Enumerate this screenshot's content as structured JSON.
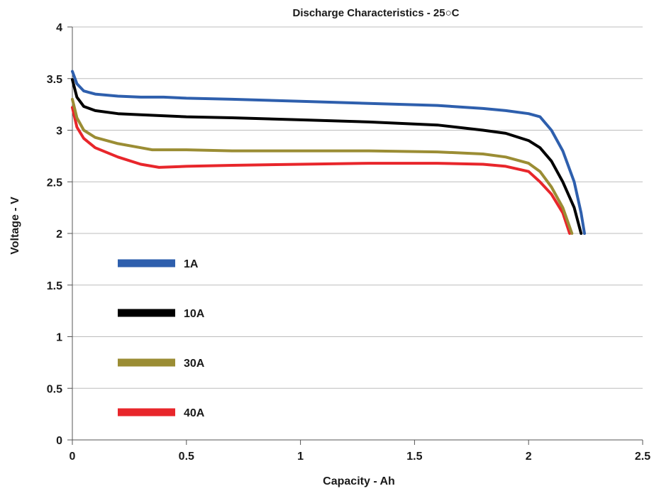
{
  "chart_data": {
    "type": "line",
    "title": "Discharge Characteristics - 25○C",
    "xlabel": "Capacity - Ah",
    "ylabel": "Voltage - V",
    "xlim": [
      0,
      2.5
    ],
    "ylim": [
      0,
      4
    ],
    "x_ticks": [
      "0",
      "0.5",
      "1",
      "1.5",
      "2",
      "2.5"
    ],
    "y_ticks": [
      "0",
      "0.5",
      "1",
      "1.5",
      "2",
      "2.5",
      "3",
      "3.5",
      "4"
    ],
    "grid": "horizontal",
    "legend_position": "left",
    "series": [
      {
        "name": "1A",
        "color": "#2e5fad",
        "points": [
          [
            0.0,
            3.57
          ],
          [
            0.02,
            3.45
          ],
          [
            0.05,
            3.38
          ],
          [
            0.1,
            3.35
          ],
          [
            0.2,
            3.33
          ],
          [
            0.3,
            3.32
          ],
          [
            0.4,
            3.32
          ],
          [
            0.5,
            3.31
          ],
          [
            0.7,
            3.3
          ],
          [
            1.0,
            3.28
          ],
          [
            1.3,
            3.26
          ],
          [
            1.6,
            3.24
          ],
          [
            1.8,
            3.21
          ],
          [
            1.9,
            3.19
          ],
          [
            2.0,
            3.16
          ],
          [
            2.05,
            3.13
          ],
          [
            2.1,
            3.0
          ],
          [
            2.15,
            2.8
          ],
          [
            2.2,
            2.5
          ],
          [
            2.23,
            2.2
          ],
          [
            2.245,
            2.0
          ]
        ]
      },
      {
        "name": "10A",
        "color": "#000000",
        "points": [
          [
            0.0,
            3.49
          ],
          [
            0.02,
            3.32
          ],
          [
            0.05,
            3.23
          ],
          [
            0.1,
            3.19
          ],
          [
            0.2,
            3.16
          ],
          [
            0.3,
            3.15
          ],
          [
            0.5,
            3.13
          ],
          [
            0.7,
            3.12
          ],
          [
            1.0,
            3.1
          ],
          [
            1.3,
            3.08
          ],
          [
            1.6,
            3.05
          ],
          [
            1.8,
            3.0
          ],
          [
            1.9,
            2.97
          ],
          [
            2.0,
            2.9
          ],
          [
            2.05,
            2.83
          ],
          [
            2.1,
            2.7
          ],
          [
            2.15,
            2.5
          ],
          [
            2.2,
            2.25
          ],
          [
            2.23,
            2.0
          ]
        ]
      },
      {
        "name": "30A",
        "color": "#9b8d34",
        "points": [
          [
            0.0,
            3.3
          ],
          [
            0.02,
            3.12
          ],
          [
            0.05,
            3.0
          ],
          [
            0.1,
            2.93
          ],
          [
            0.2,
            2.87
          ],
          [
            0.3,
            2.83
          ],
          [
            0.35,
            2.81
          ],
          [
            0.5,
            2.81
          ],
          [
            0.7,
            2.8
          ],
          [
            1.0,
            2.8
          ],
          [
            1.3,
            2.8
          ],
          [
            1.6,
            2.79
          ],
          [
            1.8,
            2.77
          ],
          [
            1.9,
            2.74
          ],
          [
            2.0,
            2.68
          ],
          [
            2.05,
            2.6
          ],
          [
            2.1,
            2.45
          ],
          [
            2.15,
            2.25
          ],
          [
            2.19,
            2.0
          ]
        ]
      },
      {
        "name": "40A",
        "color": "#e8262b",
        "points": [
          [
            0.0,
            3.22
          ],
          [
            0.02,
            3.03
          ],
          [
            0.05,
            2.92
          ],
          [
            0.1,
            2.83
          ],
          [
            0.2,
            2.74
          ],
          [
            0.3,
            2.67
          ],
          [
            0.38,
            2.64
          ],
          [
            0.5,
            2.65
          ],
          [
            0.7,
            2.66
          ],
          [
            1.0,
            2.67
          ],
          [
            1.3,
            2.68
          ],
          [
            1.6,
            2.68
          ],
          [
            1.8,
            2.67
          ],
          [
            1.9,
            2.65
          ],
          [
            2.0,
            2.6
          ],
          [
            2.05,
            2.5
          ],
          [
            2.1,
            2.38
          ],
          [
            2.15,
            2.2
          ],
          [
            2.18,
            2.0
          ]
        ]
      }
    ]
  }
}
